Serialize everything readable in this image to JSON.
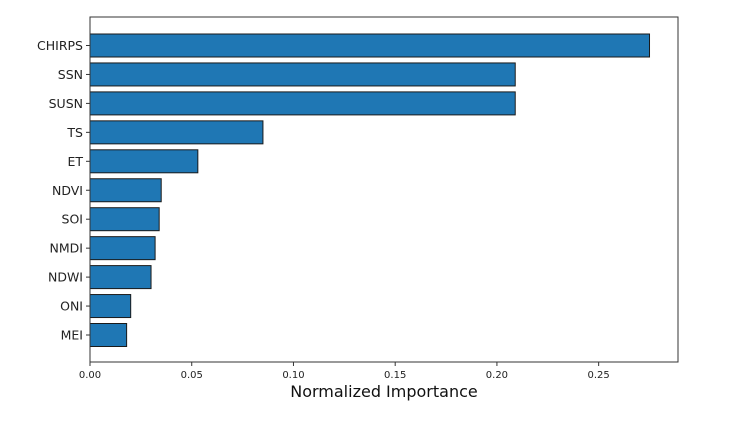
{
  "chart_data": {
    "type": "bar",
    "orientation": "horizontal",
    "title": "",
    "xlabel": "Normalized Importance",
    "ylabel": "",
    "categories": [
      "CHIRPS",
      "SSN",
      "SUSN",
      "TS",
      "ET",
      "NDVI",
      "SOI",
      "NMDI",
      "NDWI",
      "ONI",
      "MEI"
    ],
    "values": [
      0.275,
      0.209,
      0.209,
      0.085,
      0.053,
      0.035,
      0.034,
      0.032,
      0.03,
      0.02,
      0.018
    ],
    "xlim": [
      0.0,
      0.289
    ],
    "xticks": [
      "0.00",
      "0.05",
      "0.10",
      "0.15",
      "0.20",
      "0.25"
    ],
    "xtick_values": [
      0.0,
      0.05,
      0.1,
      0.15,
      0.2,
      0.25
    ],
    "bar_color": "#1f77b4",
    "edge_color": "#1a1a1a",
    "grid": false
  }
}
